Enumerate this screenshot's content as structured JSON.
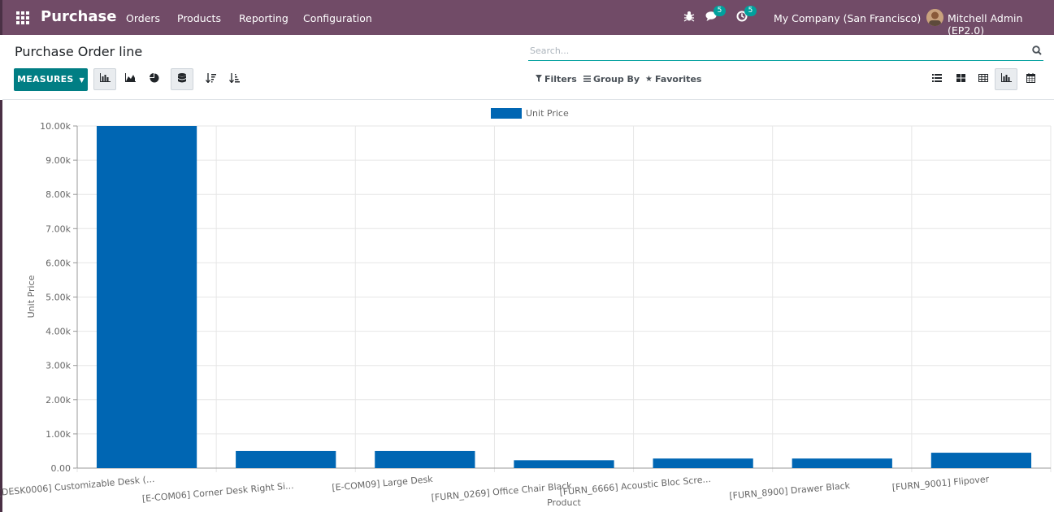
{
  "navbar": {
    "brand": "Purchase",
    "menus": [
      "Orders",
      "Products",
      "Reporting",
      "Configuration"
    ],
    "messages_count": "5",
    "activities_count": "5",
    "company": "My Company (San Francisco)",
    "user": "Mitchell Admin (EP2.0)"
  },
  "page": {
    "title": "Purchase Order line",
    "search_placeholder": "Search...",
    "measures_label": "MEASURES",
    "filters_label": "Filters",
    "groupby_label": "Group By",
    "favorites_label": "Favorites"
  },
  "colors": {
    "brand": "#714B67",
    "accent": "#017E84",
    "bar": "#0066B3"
  },
  "chart_data": {
    "type": "bar",
    "categories": [
      "[DESK0006] Customizable Desk (...",
      "[E-COM06] Corner Desk Right Si...",
      "[E-COM09] Large Desk",
      "[FURN_0269] Office Chair Black",
      "[FURN_6666] Acoustic Bloc Scre...",
      "[FURN_8900] Drawer Black",
      "[FURN_9001] Flipover"
    ],
    "series": [
      {
        "name": "Unit Price",
        "values": [
          10000,
          500,
          500,
          230,
          280,
          280,
          450
        ]
      }
    ],
    "ylim": [
      0,
      10000
    ],
    "yticks": [
      "0.00",
      "1.00k",
      "2.00k",
      "3.00k",
      "4.00k",
      "5.00k",
      "6.00k",
      "7.00k",
      "8.00k",
      "9.00k",
      "10.00k"
    ],
    "xlabel": "Product",
    "ylabel": "Unit Price",
    "legend": "top-center",
    "grid": true
  }
}
